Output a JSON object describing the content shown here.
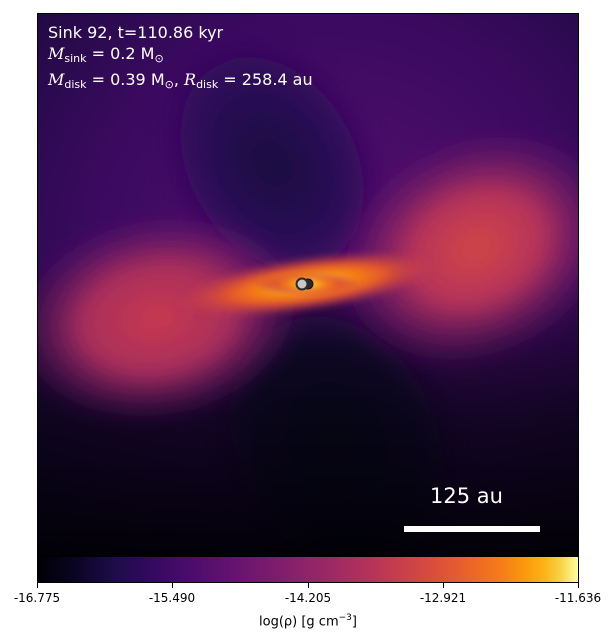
{
  "annotation": {
    "line1": "Sink 92, t=110.86 kyr",
    "m_sink_symbol": "M",
    "m_sink_sub": "sink",
    "m_sink_value": " = 0.2 M",
    "m_sink_unit_sub": "⊙",
    "m_disk_symbol": "M",
    "m_disk_sub": "disk",
    "m_disk_value": " = 0.39 M",
    "m_disk_unit_sub": "⊙",
    "separator": ", ",
    "r_disk_symbol": "R",
    "r_disk_sub": "disk",
    "r_disk_value": " = 258.4 au"
  },
  "scalebar": {
    "label": "125 au"
  },
  "colorbar": {
    "ticks": [
      "-16.775",
      "-15.490",
      "-14.205",
      "-12.921",
      "-11.636"
    ],
    "label": "log(ρ) [g cm",
    "label_exp": "−3",
    "label_end": "]",
    "colormap": "inferno"
  },
  "sinks": {
    "count": 2
  },
  "colors": {
    "text_on_image": "#ffffff",
    "sink_fill": "#c8c8c8",
    "sink_edge": "#2a2a2a"
  }
}
